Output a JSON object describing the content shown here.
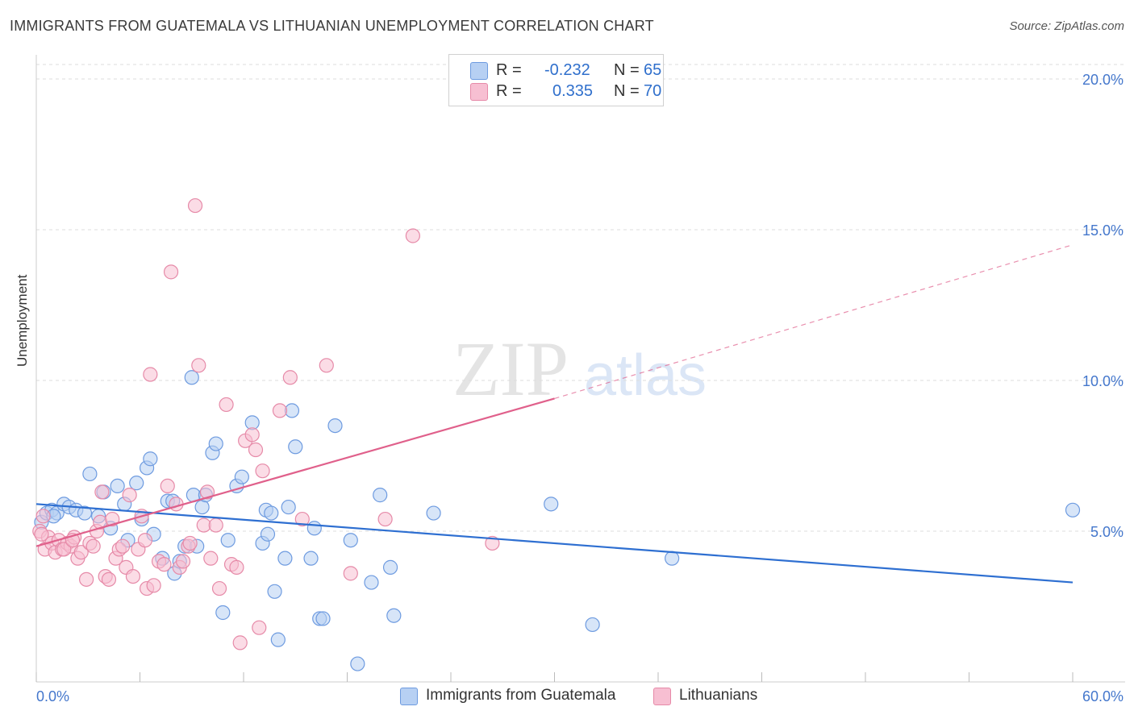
{
  "title": "IMMIGRANTS FROM GUATEMALA VS LITHUANIAN UNEMPLOYMENT CORRELATION CHART",
  "source": "Source: ZipAtlas.com",
  "watermark": {
    "zip": "ZIP",
    "atlas": "atlas"
  },
  "legend_top": {
    "rows": [
      {
        "r_label": "R =",
        "r_value": "-0.232",
        "n_label": "N =",
        "n_value": "65"
      },
      {
        "r_label": "R =",
        "r_value": "0.335",
        "n_label": "N =",
        "n_value": "70"
      }
    ]
  },
  "colors": {
    "blue_fill": "#b7d0f3",
    "blue_stroke": "#6e9be0",
    "blue_line": "#2e6fd1",
    "pink_fill": "#f7bfd2",
    "pink_stroke": "#e68aa8",
    "pink_line": "#e0608b",
    "axis_text": "#4477cc",
    "grid": "#dddddd"
  },
  "chart_data": {
    "type": "scatter",
    "title": "IMMIGRANTS FROM GUATEMALA VS LITHUANIAN UNEMPLOYMENT CORRELATION CHART",
    "xlabel": "",
    "ylabel": "Unemployment",
    "xlim": [
      0,
      60
    ],
    "ylim": [
      0,
      20
    ],
    "x_tick_labels": [
      "0.0%",
      "60.0%"
    ],
    "y_ticks": [
      5,
      10,
      15,
      20
    ],
    "y_tick_labels": [
      "5.0%",
      "10.0%",
      "15.0%",
      "20.0%"
    ],
    "grid": true,
    "legend_position": "bottom",
    "series": [
      {
        "name": "Immigrants from Guatemala",
        "color": "#6e9be0",
        "R": -0.232,
        "N": 65,
        "trend": {
          "x": [
            0,
            60
          ],
          "y": [
            5.9,
            3.3
          ],
          "dashed_after": null
        },
        "points": [
          [
            0.3,
            5.3
          ],
          [
            0.6,
            5.6
          ],
          [
            0.9,
            5.7
          ],
          [
            1.2,
            5.6
          ],
          [
            1.6,
            5.9
          ],
          [
            1.9,
            5.8
          ],
          [
            2.3,
            5.7
          ],
          [
            2.8,
            5.6
          ],
          [
            3.1,
            6.9
          ],
          [
            3.6,
            5.5
          ],
          [
            3.9,
            6.3
          ],
          [
            4.3,
            5.1
          ],
          [
            4.7,
            6.5
          ],
          [
            5.1,
            5.9
          ],
          [
            5.3,
            4.7
          ],
          [
            5.8,
            6.6
          ],
          [
            6.1,
            5.4
          ],
          [
            6.4,
            7.1
          ],
          [
            6.6,
            7.4
          ],
          [
            6.8,
            4.9
          ],
          [
            7.3,
            4.1
          ],
          [
            7.6,
            6.0
          ],
          [
            7.9,
            6.0
          ],
          [
            8.0,
            3.6
          ],
          [
            8.3,
            4.0
          ],
          [
            8.6,
            4.5
          ],
          [
            9.0,
            10.1
          ],
          [
            9.1,
            6.2
          ],
          [
            9.3,
            4.5
          ],
          [
            9.6,
            5.8
          ],
          [
            9.8,
            6.2
          ],
          [
            10.2,
            7.6
          ],
          [
            10.4,
            7.9
          ],
          [
            10.8,
            2.3
          ],
          [
            11.1,
            4.7
          ],
          [
            11.6,
            6.5
          ],
          [
            11.9,
            6.8
          ],
          [
            12.5,
            8.6
          ],
          [
            13.1,
            4.6
          ],
          [
            13.3,
            5.7
          ],
          [
            13.6,
            5.6
          ],
          [
            13.4,
            4.9
          ],
          [
            14.0,
            1.4
          ],
          [
            13.8,
            3.0
          ],
          [
            14.4,
            4.1
          ],
          [
            14.6,
            5.8
          ],
          [
            14.8,
            9.0
          ],
          [
            15.0,
            7.8
          ],
          [
            15.9,
            4.1
          ],
          [
            16.4,
            2.1
          ],
          [
            16.6,
            2.1
          ],
          [
            16.1,
            5.1
          ],
          [
            17.3,
            8.5
          ],
          [
            18.2,
            4.7
          ],
          [
            18.6,
            0.6
          ],
          [
            19.4,
            3.3
          ],
          [
            19.9,
            6.2
          ],
          [
            20.5,
            3.8
          ],
          [
            20.7,
            2.2
          ],
          [
            23.0,
            5.6
          ],
          [
            29.8,
            5.9
          ],
          [
            32.2,
            1.9
          ],
          [
            36.8,
            4.1
          ],
          [
            60.0,
            5.7
          ],
          [
            1.0,
            5.5
          ]
        ]
      },
      {
        "name": "Lithuanians",
        "color": "#e68aa8",
        "R": 0.335,
        "N": 70,
        "trend": {
          "x": [
            0,
            30
          ],
          "y": [
            4.5,
            9.4
          ],
          "dashed_after": {
            "x": [
              30,
              60
            ],
            "y": [
              9.4,
              14.5
            ]
          }
        },
        "points": [
          [
            0.2,
            5.0
          ],
          [
            0.4,
            5.5
          ],
          [
            0.5,
            4.4
          ],
          [
            0.7,
            4.8
          ],
          [
            0.9,
            4.6
          ],
          [
            1.1,
            4.3
          ],
          [
            1.3,
            4.7
          ],
          [
            1.5,
            4.4
          ],
          [
            1.8,
            4.6
          ],
          [
            2.0,
            4.5
          ],
          [
            2.2,
            4.8
          ],
          [
            2.4,
            4.1
          ],
          [
            2.6,
            4.3
          ],
          [
            2.9,
            3.4
          ],
          [
            3.1,
            4.6
          ],
          [
            3.3,
            4.5
          ],
          [
            3.5,
            5.0
          ],
          [
            3.7,
            5.3
          ],
          [
            3.8,
            6.3
          ],
          [
            4.0,
            3.5
          ],
          [
            4.2,
            3.4
          ],
          [
            4.4,
            5.4
          ],
          [
            4.6,
            4.1
          ],
          [
            4.8,
            4.4
          ],
          [
            5.0,
            4.5
          ],
          [
            5.2,
            3.8
          ],
          [
            5.4,
            6.2
          ],
          [
            5.6,
            3.5
          ],
          [
            5.9,
            4.4
          ],
          [
            6.1,
            5.5
          ],
          [
            6.3,
            4.7
          ],
          [
            6.4,
            3.1
          ],
          [
            6.6,
            10.2
          ],
          [
            6.8,
            3.2
          ],
          [
            7.1,
            4.0
          ],
          [
            7.4,
            3.9
          ],
          [
            7.6,
            6.5
          ],
          [
            7.8,
            13.6
          ],
          [
            8.1,
            5.9
          ],
          [
            8.3,
            3.8
          ],
          [
            8.5,
            4.0
          ],
          [
            8.8,
            4.5
          ],
          [
            8.9,
            4.6
          ],
          [
            9.2,
            15.8
          ],
          [
            9.4,
            10.5
          ],
          [
            9.7,
            5.2
          ],
          [
            9.9,
            6.3
          ],
          [
            10.1,
            4.1
          ],
          [
            10.4,
            5.2
          ],
          [
            10.6,
            3.1
          ],
          [
            11.0,
            9.2
          ],
          [
            11.3,
            3.9
          ],
          [
            11.6,
            3.8
          ],
          [
            11.8,
            1.3
          ],
          [
            12.1,
            8.0
          ],
          [
            12.5,
            8.2
          ],
          [
            12.7,
            7.7
          ],
          [
            12.9,
            1.8
          ],
          [
            13.1,
            7.0
          ],
          [
            14.1,
            9.0
          ],
          [
            14.7,
            10.1
          ],
          [
            15.4,
            5.4
          ],
          [
            16.8,
            10.5
          ],
          [
            18.2,
            3.6
          ],
          [
            20.2,
            5.4
          ],
          [
            21.8,
            14.8
          ],
          [
            26.4,
            4.6
          ],
          [
            0.3,
            4.9
          ],
          [
            1.6,
            4.4
          ],
          [
            2.1,
            4.7
          ]
        ]
      }
    ]
  },
  "legend_bottom": [
    {
      "name": "Immigrants from Guatemala"
    },
    {
      "name": "Lithuanians"
    }
  ]
}
